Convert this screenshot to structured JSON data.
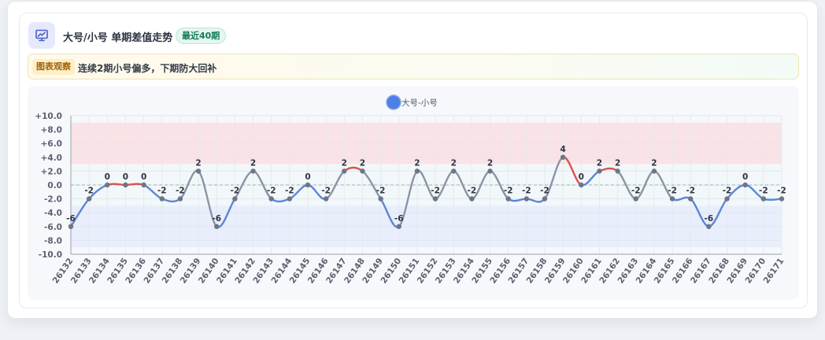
{
  "header": {
    "icon": "presentation-chart-icon",
    "title": "大号/小号 单期差值走势",
    "badge": "最近40期"
  },
  "observation": {
    "tag": "图表观察",
    "text": "连续2期小号偏多，下期防大回补"
  },
  "colors": {
    "line_blue": "#5b86d6",
    "line_gray": "#8a94a6",
    "line_red": "#d9534f",
    "band_high": "#f9e3e6",
    "band_mid": "#f2f8f9",
    "band_low": "#e8eefb",
    "legend_dot": "#4e7fe8"
  },
  "chart_data": {
    "type": "line",
    "legend": [
      "大号-小号"
    ],
    "legend_position": "top",
    "x": [
      "26132",
      "26133",
      "26134",
      "26135",
      "26136",
      "26137",
      "26138",
      "26139",
      "26140",
      "26141",
      "26142",
      "26143",
      "26144",
      "26145",
      "26146",
      "26147",
      "26148",
      "26149",
      "26150",
      "26151",
      "26152",
      "26153",
      "26154",
      "26155",
      "26156",
      "26157",
      "26158",
      "26159",
      "26160",
      "26161",
      "26162",
      "26163",
      "26164",
      "26165",
      "26166",
      "26167",
      "26168",
      "26169",
      "26170",
      "26171"
    ],
    "series": [
      {
        "name": "大号-小号",
        "values": [
          -6,
          -2,
          0,
          0,
          0,
          -2,
          -2,
          2,
          -6,
          -2,
          2,
          -2,
          -2,
          0,
          -2,
          2,
          2,
          -2,
          -6,
          2,
          -2,
          2,
          -2,
          2,
          -2,
          -2,
          -2,
          4,
          0,
          2,
          2,
          -2,
          2,
          -2,
          -2,
          -6,
          -2,
          0,
          -2,
          -2
        ]
      }
    ],
    "y_ticks": [
      "+10.0",
      "+8.0",
      "+6.0",
      "+4.0",
      "+2.0",
      "0.0",
      "-2.0",
      "-4.0",
      "-6.0",
      "-8.0",
      "-10.0"
    ],
    "ylim": [
      -10,
      10
    ],
    "bands": [
      {
        "from": 3,
        "to": 9,
        "color": "high"
      },
      {
        "from": -3,
        "to": 3,
        "color": "mid"
      },
      {
        "from": -9,
        "to": -3,
        "color": "low"
      }
    ],
    "grid": true
  }
}
